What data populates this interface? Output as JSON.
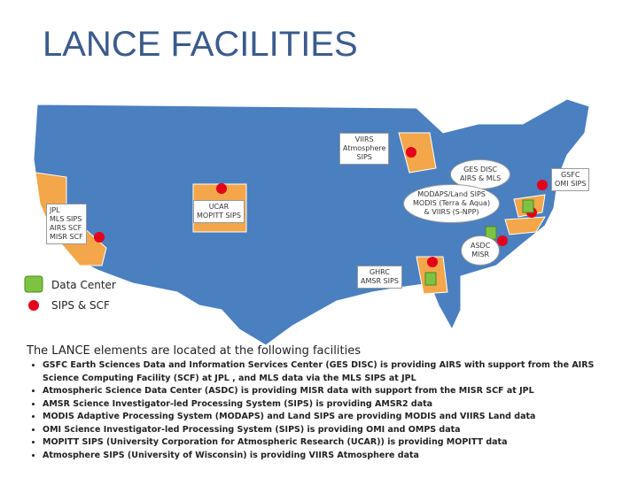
{
  "header": {
    "title": "LANCE FACILITIES"
  },
  "map": {
    "labels": [
      {
        "lines": [
          "VIIRS",
          "Atmosphere",
          "SIPS"
        ]
      },
      {
        "lines": [
          "GES DISC",
          "AIRS & MLS"
        ]
      },
      {
        "lines": [
          "GSFC",
          "OMI SIPS"
        ]
      },
      {
        "lines": [
          "MODAPS/Land SIPS",
          "MODIS (Terra & Aqua)",
          "& VIIRS (S-NPP)"
        ]
      },
      {
        "lines": [
          "UCAR",
          "MOPITT SIPS"
        ]
      },
      {
        "lines": [
          "JPL",
          "MLS SIPS",
          "AIRS SCF",
          "MISR SCF"
        ]
      },
      {
        "lines": [
          "ASDC",
          "MISR"
        ]
      },
      {
        "lines": [
          "GHRC",
          "AMSR SIPS"
        ]
      }
    ],
    "legend": [
      "Data Center",
      "SIPS & SCF"
    ]
  },
  "body": {
    "intro": "The LANCE elements are located at the following facilities",
    "bullets": [
      "GSFC Earth Sciences Data and Information Services Center (GES DISC) is providing AIRS with support from the AIRS Science Computing Facility (SCF) at JPL , and MLS data via the MLS SIPS at JPL",
      "Atmospheric Science Data Center (ASDC) is providing MISR data with support from the MISR SCF at JPL",
      "AMSR Science Investigator-led Processing System (SIPS) is providing AMSR2 data",
      "MODIS Adaptive Processing System (MODAPS) and Land SIPS are providing MODIS and VIIRS Land data",
      "OMI Science Investigator-led Processing System (SIPS) is providing OMI and OMPS data",
      "MOPITT SIPS (University Corporation for Atmospheric Research (UCAR)) is providing MOPITT data",
      "Atmosphere SIPS (University of Wisconsin) is providing VIIRS Atmosphere data"
    ]
  }
}
